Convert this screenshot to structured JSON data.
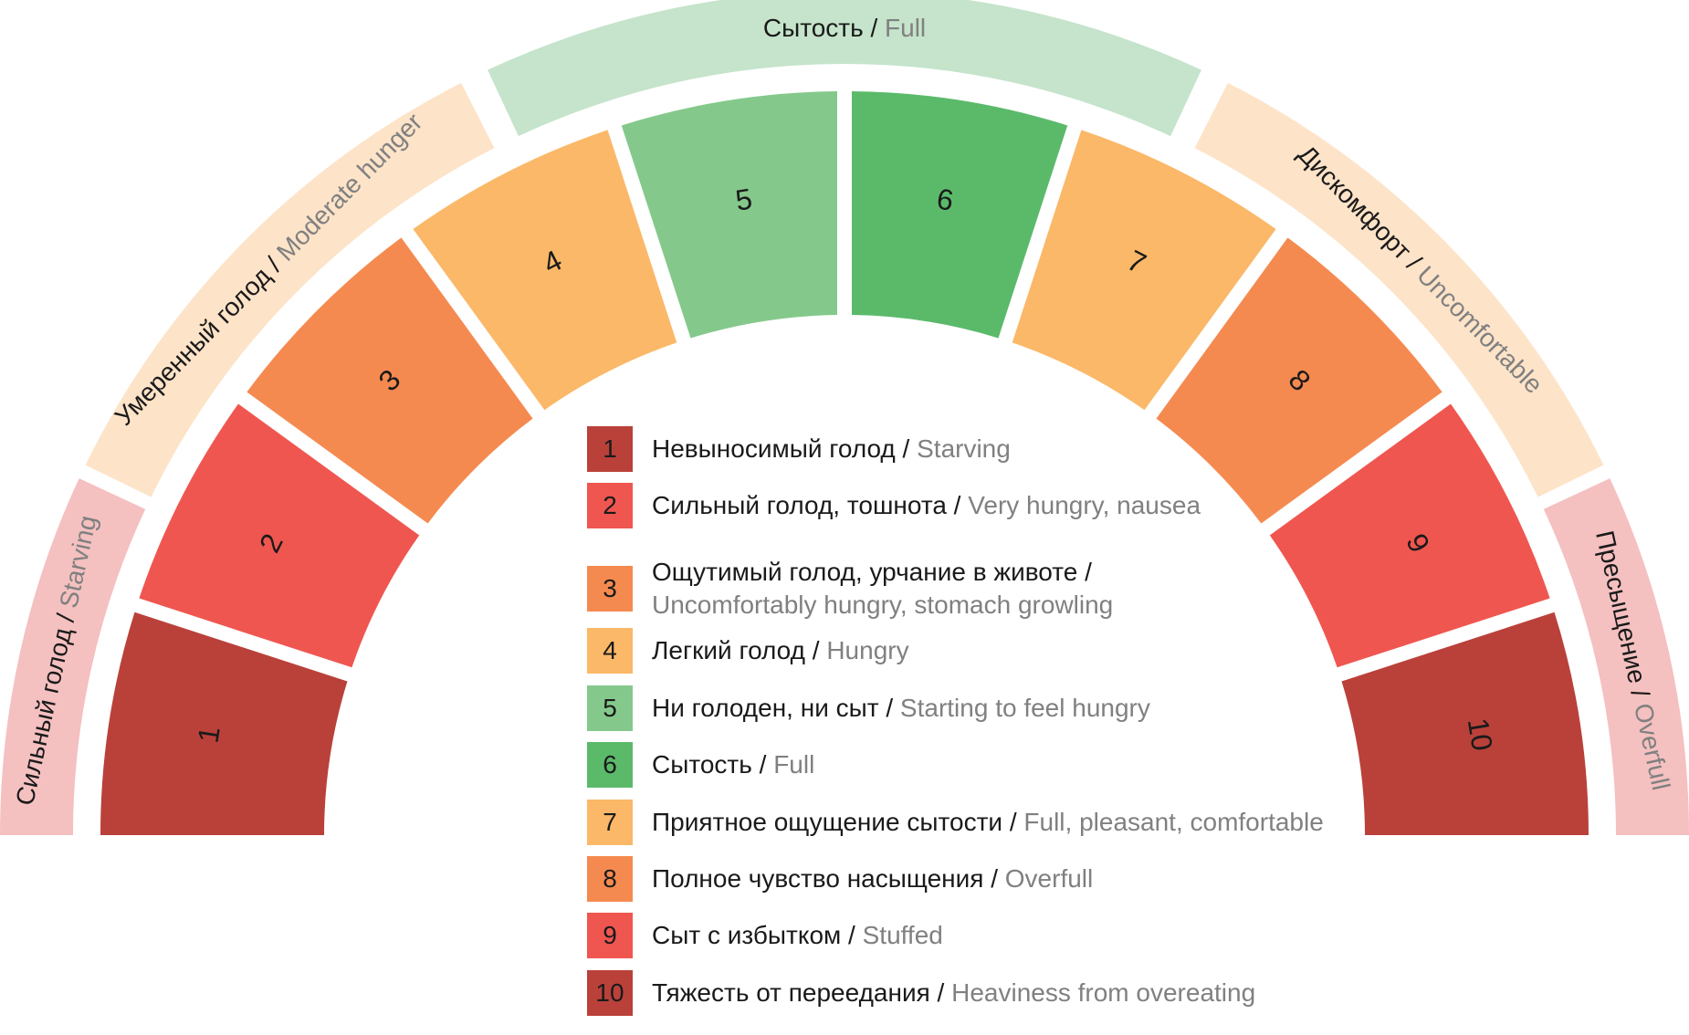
{
  "levels": [
    {
      "number": "1",
      "ru": "Невыносимый голод",
      "en": "Starving",
      "color": "#b9413a"
    },
    {
      "number": "2",
      "ru": "Сильный голод, тошнота",
      "en": "Very hungry, nausea",
      "color": "#f05650"
    },
    {
      "number": "3",
      "ru": "Ощутимый голод, урчание в животе",
      "en": "Uncomfortably hungry, stomach growling",
      "color": "#f58a50"
    },
    {
      "number": "4",
      "ru": "Легкий голод",
      "en": "Hungry",
      "color": "#fbb868"
    },
    {
      "number": "5",
      "ru": "Ни голоден, ни сыт",
      "en": "Starting to feel hungry",
      "color": "#84c98b"
    },
    {
      "number": "6",
      "ru": "Сытость",
      "en": "Full",
      "color": "#5bba6a"
    },
    {
      "number": "7",
      "ru": "Приятное ощущение сытости",
      "en": "Full, pleasant, comfortable",
      "color": "#fbb868"
    },
    {
      "number": "8",
      "ru": "Полное чувство насыщения",
      "en": "Overfull",
      "color": "#f58a50"
    },
    {
      "number": "9",
      "ru": "Сыт с избытком",
      "en": "Stuffed",
      "color": "#f05650"
    },
    {
      "number": "10",
      "ru": "Тяжесть от переедания",
      "en": "Heaviness from overeating",
      "color": "#b9413a"
    }
  ],
  "groups": [
    {
      "ru": "Сильный голод",
      "en": "Starving",
      "color": "#f5c0c0"
    },
    {
      "ru": "Умеренный голод",
      "en": "Moderate hunger",
      "color": "#fde3c8"
    },
    {
      "ru": "Сытость",
      "en": "Full",
      "color": "#c5e4cb"
    },
    {
      "ru": "Дискомфорт",
      "en": "Uncomfortable",
      "color": "#fde3c8"
    },
    {
      "ru": "Пресыщение",
      "en": "Overfull",
      "color": "#f5c0c0"
    }
  ],
  "separator": " / "
}
